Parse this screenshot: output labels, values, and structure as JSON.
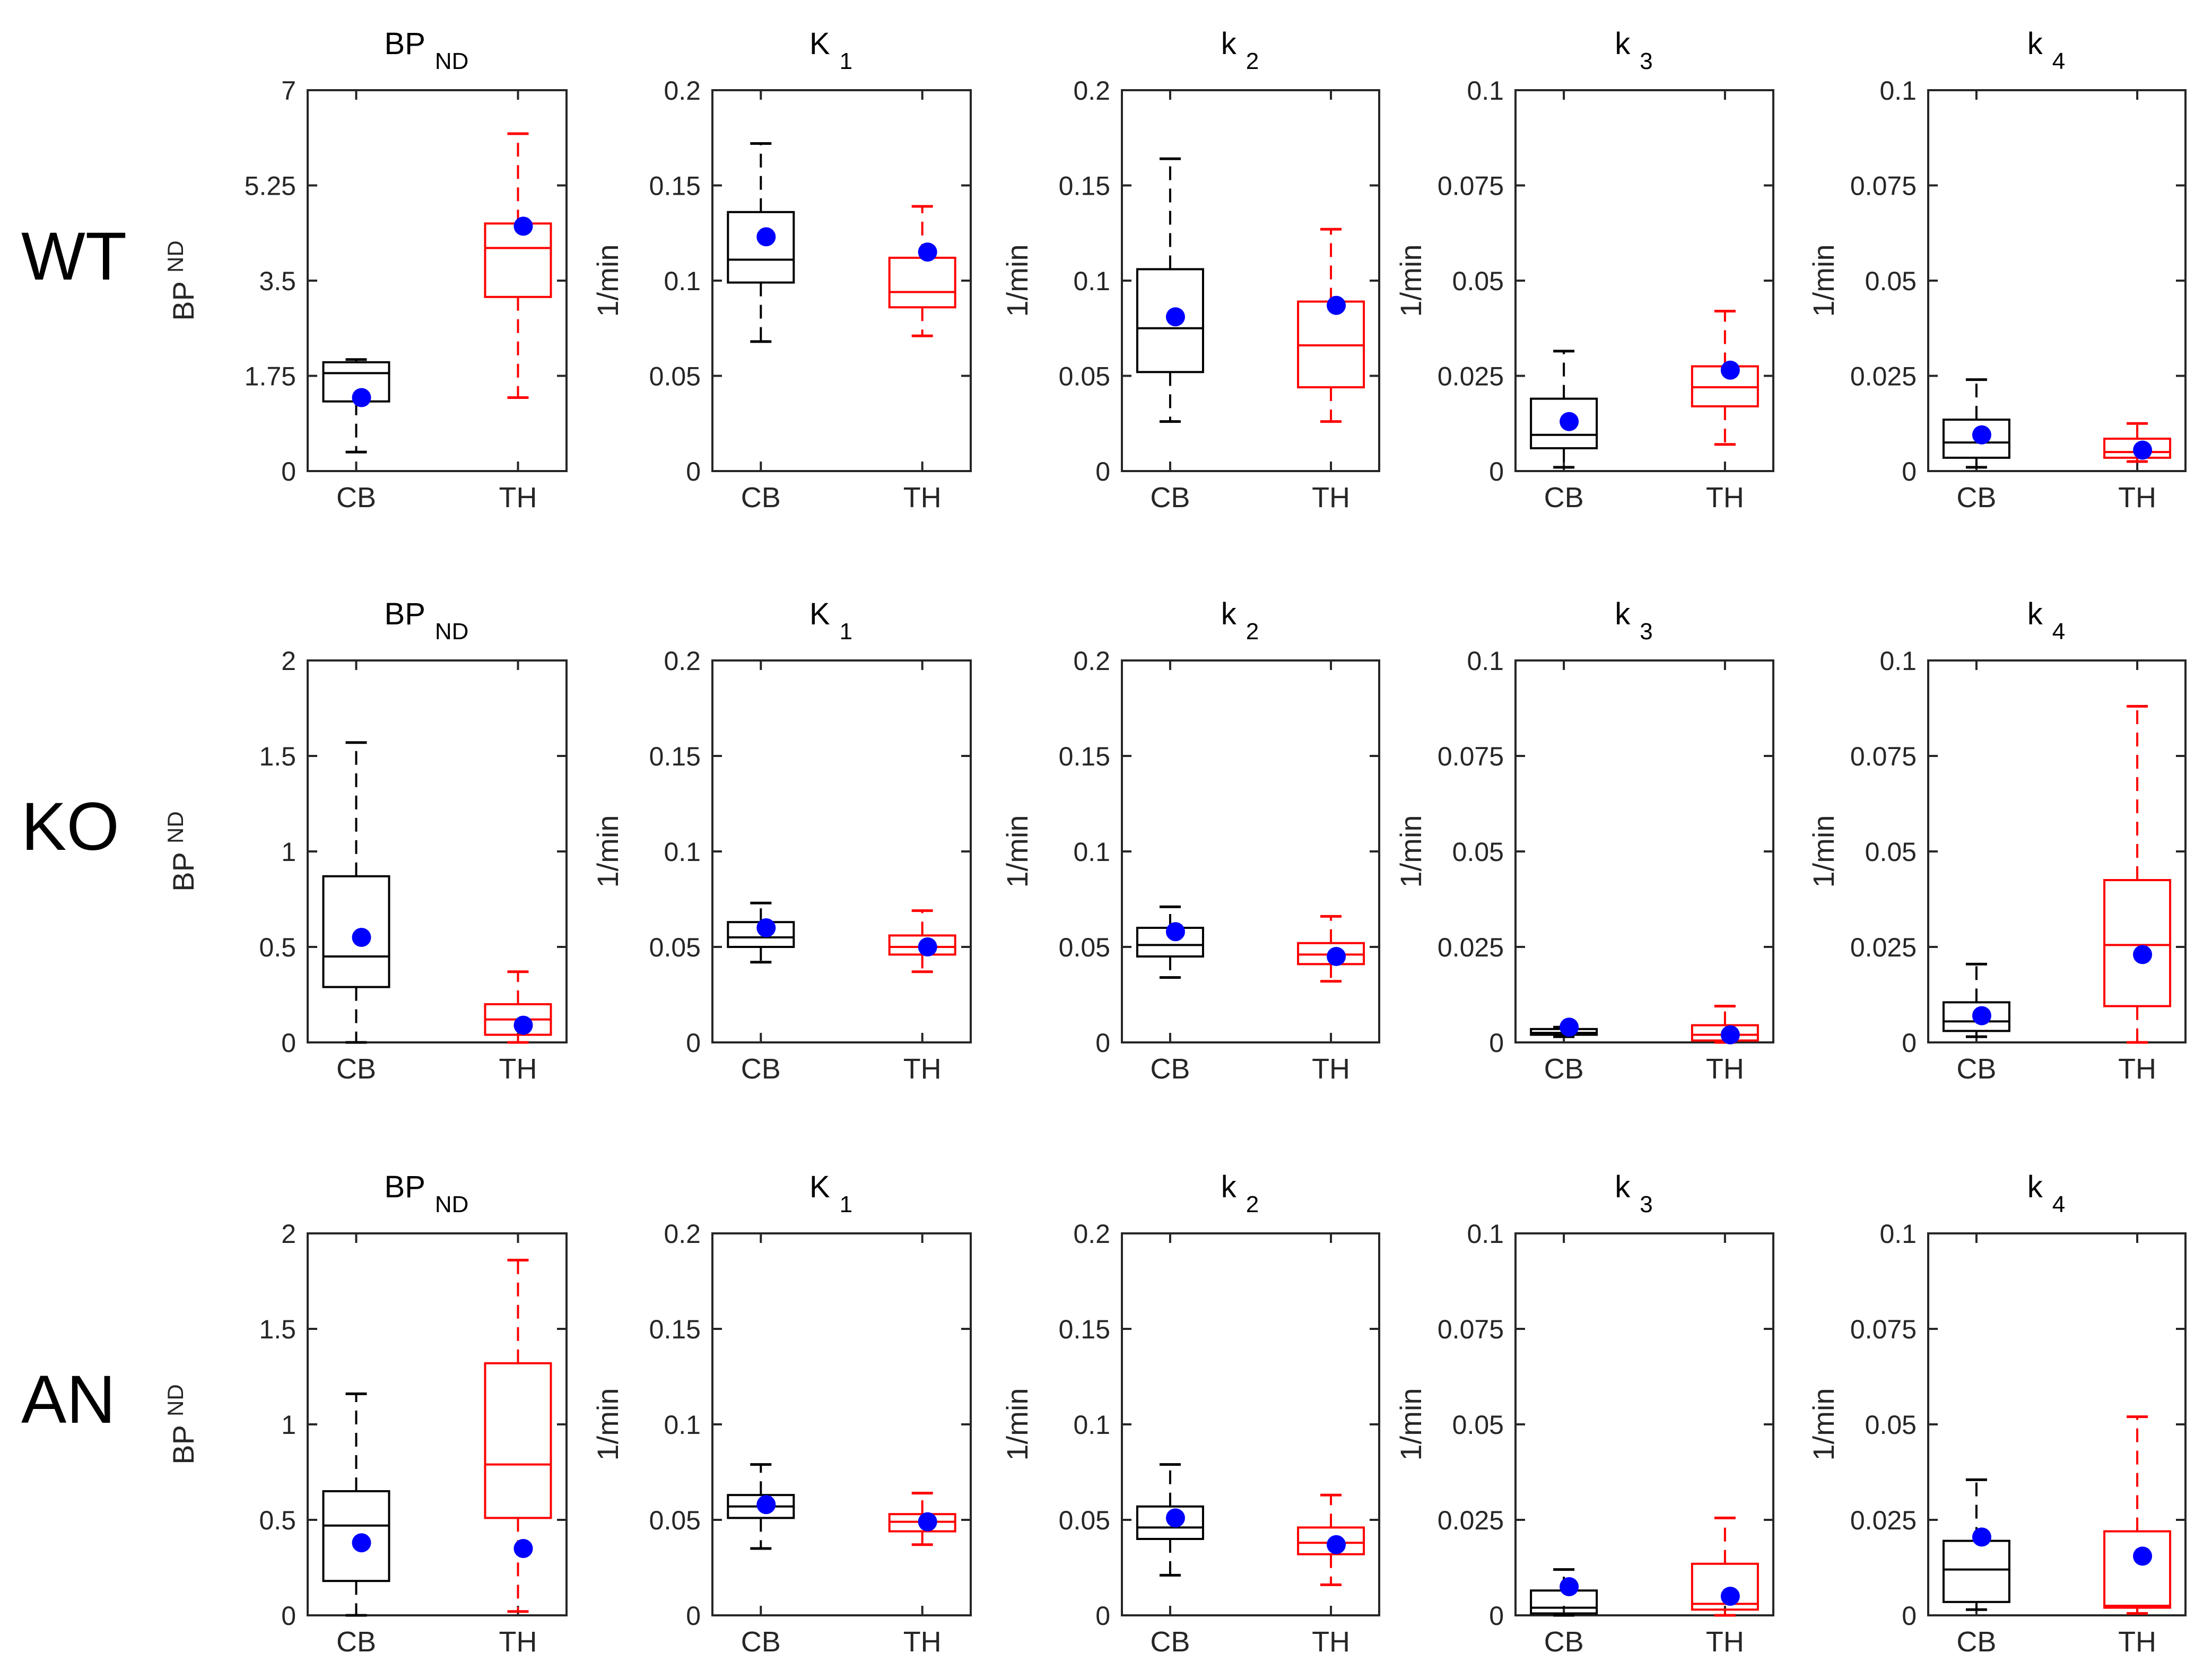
{
  "chart_data": {
    "type": "box",
    "layout": "grid",
    "rows": [
      {
        "label": "WT"
      },
      {
        "label": "KO"
      },
      {
        "label": "AN"
      }
    ],
    "panels": [
      {
        "title": "BP",
        "title_sub": "ND",
        "ylabel": "BP",
        "ylabel_sub": "ND"
      },
      {
        "title": "K",
        "title_sub": "1",
        "ylabel": "1/min",
        "ylabel_sub": ""
      },
      {
        "title": "k",
        "title_sub": "2",
        "ylabel": "1/min",
        "ylabel_sub": ""
      },
      {
        "title": "k",
        "title_sub": "3",
        "ylabel": "1/min",
        "ylabel_sub": ""
      },
      {
        "title": "k",
        "title_sub": "4",
        "ylabel": "1/min",
        "ylabel_sub": ""
      }
    ],
    "categories": [
      "CB",
      "TH"
    ],
    "category_colors": [
      "#000000",
      "#ff0000"
    ],
    "mean_color": "#0000ff",
    "ylims": [
      [
        [
          0,
          7
        ],
        [
          0,
          0.2
        ],
        [
          0,
          0.2
        ],
        [
          0,
          0.1
        ],
        [
          0,
          0.1
        ]
      ],
      [
        [
          0,
          2
        ],
        [
          0,
          0.2
        ],
        [
          0,
          0.2
        ],
        [
          0,
          0.1
        ],
        [
          0,
          0.1
        ]
      ],
      [
        [
          0,
          2
        ],
        [
          0,
          0.2
        ],
        [
          0,
          0.2
        ],
        [
          0,
          0.1
        ],
        [
          0,
          0.1
        ]
      ]
    ],
    "yticks": [
      [
        [
          "0",
          "1.75",
          "3.5",
          "5.25",
          "7"
        ],
        [
          "0",
          "0.05",
          "0.1",
          "0.15",
          "0.2"
        ],
        [
          "0",
          "0.05",
          "0.1",
          "0.15",
          "0.2"
        ],
        [
          "0",
          "0.025",
          "0.05",
          "0.075",
          "0.1"
        ],
        [
          "0",
          "0.025",
          "0.05",
          "0.075",
          "0.1"
        ]
      ],
      [
        [
          "0",
          "0.5",
          "1",
          "1.5",
          "2"
        ],
        [
          "0",
          "0.05",
          "0.1",
          "0.15",
          "0.2"
        ],
        [
          "0",
          "0.05",
          "0.1",
          "0.15",
          "0.2"
        ],
        [
          "0",
          "0.025",
          "0.05",
          "0.075",
          "0.1"
        ],
        [
          "0",
          "0.025",
          "0.05",
          "0.075",
          "0.1"
        ]
      ],
      [
        [
          "0",
          "0.5",
          "1",
          "1.5",
          "2"
        ],
        [
          "0",
          "0.05",
          "0.1",
          "0.15",
          "0.2"
        ],
        [
          "0",
          "0.05",
          "0.1",
          "0.15",
          "0.2"
        ],
        [
          "0",
          "0.025",
          "0.05",
          "0.075",
          "0.1"
        ],
        [
          "0",
          "0.025",
          "0.05",
          "0.075",
          "0.1"
        ]
      ]
    ],
    "boxes": [
      [
        [
          {
            "whisker_low": 0.35,
            "q1": 1.28,
            "median": 1.8,
            "q3": 2.0,
            "whisker_high": 2.05,
            "mean": 1.35
          },
          {
            "whisker_low": 1.35,
            "q1": 3.2,
            "median": 4.1,
            "q3": 4.55,
            "whisker_high": 6.2,
            "mean": 4.5
          }
        ],
        [
          {
            "whisker_low": 0.068,
            "q1": 0.099,
            "median": 0.111,
            "q3": 0.136,
            "whisker_high": 0.172,
            "mean": 0.123
          },
          {
            "whisker_low": 0.071,
            "q1": 0.086,
            "median": 0.094,
            "q3": 0.112,
            "whisker_high": 0.139,
            "mean": 0.115
          }
        ],
        [
          {
            "whisker_low": 0.026,
            "q1": 0.052,
            "median": 0.075,
            "q3": 0.106,
            "whisker_high": 0.164,
            "mean": 0.081
          },
          {
            "whisker_low": 0.026,
            "q1": 0.044,
            "median": 0.066,
            "q3": 0.089,
            "whisker_high": 0.127,
            "mean": 0.087
          }
        ],
        [
          {
            "whisker_low": 0.001,
            "q1": 0.006,
            "median": 0.0095,
            "q3": 0.019,
            "whisker_high": 0.0315,
            "mean": 0.013
          },
          {
            "whisker_low": 0.007,
            "q1": 0.017,
            "median": 0.022,
            "q3": 0.0275,
            "whisker_high": 0.042,
            "mean": 0.0265
          }
        ],
        [
          {
            "whisker_low": 0.001,
            "q1": 0.0035,
            "median": 0.0075,
            "q3": 0.0135,
            "whisker_high": 0.024,
            "mean": 0.0095
          },
          {
            "whisker_low": 0.0025,
            "q1": 0.0035,
            "median": 0.005,
            "q3": 0.0085,
            "whisker_high": 0.0125,
            "mean": 0.0055
          }
        ]
      ],
      [
        [
          {
            "whisker_low": 0.0,
            "q1": 0.29,
            "median": 0.45,
            "q3": 0.87,
            "whisker_high": 1.57,
            "mean": 0.55
          },
          {
            "whisker_low": 0.0,
            "q1": 0.04,
            "median": 0.12,
            "q3": 0.2,
            "whisker_high": 0.37,
            "mean": 0.09
          }
        ],
        [
          {
            "whisker_low": 0.042,
            "q1": 0.05,
            "median": 0.055,
            "q3": 0.063,
            "whisker_high": 0.073,
            "mean": 0.06
          },
          {
            "whisker_low": 0.037,
            "q1": 0.046,
            "median": 0.05,
            "q3": 0.056,
            "whisker_high": 0.069,
            "mean": 0.05
          }
        ],
        [
          {
            "whisker_low": 0.034,
            "q1": 0.045,
            "median": 0.051,
            "q3": 0.06,
            "whisker_high": 0.071,
            "mean": 0.058
          },
          {
            "whisker_low": 0.032,
            "q1": 0.041,
            "median": 0.046,
            "q3": 0.052,
            "whisker_high": 0.066,
            "mean": 0.045
          }
        ],
        [
          {
            "whisker_low": 0.0015,
            "q1": 0.002,
            "median": 0.0025,
            "q3": 0.0035,
            "whisker_high": 0.004,
            "mean": 0.004
          },
          {
            "whisker_low": 0.0,
            "q1": 0.0005,
            "median": 0.002,
            "q3": 0.0045,
            "whisker_high": 0.0095,
            "mean": 0.002
          }
        ],
        [
          {
            "whisker_low": 0.0015,
            "q1": 0.003,
            "median": 0.0055,
            "q3": 0.0105,
            "whisker_high": 0.0205,
            "mean": 0.007
          },
          {
            "whisker_low": 0.0,
            "q1": 0.0095,
            "median": 0.0255,
            "q3": 0.0425,
            "whisker_high": 0.088,
            "mean": 0.023
          }
        ]
      ],
      [
        [
          {
            "whisker_low": 0.0,
            "q1": 0.18,
            "median": 0.47,
            "q3": 0.65,
            "whisker_high": 1.16,
            "mean": 0.38
          },
          {
            "whisker_low": 0.02,
            "q1": 0.51,
            "median": 0.79,
            "q3": 1.32,
            "whisker_high": 1.86,
            "mean": 0.35
          }
        ],
        [
          {
            "whisker_low": 0.035,
            "q1": 0.051,
            "median": 0.057,
            "q3": 0.063,
            "whisker_high": 0.079,
            "mean": 0.058
          },
          {
            "whisker_low": 0.037,
            "q1": 0.044,
            "median": 0.049,
            "q3": 0.053,
            "whisker_high": 0.064,
            "mean": 0.049
          }
        ],
        [
          {
            "whisker_low": 0.021,
            "q1": 0.04,
            "median": 0.046,
            "q3": 0.057,
            "whisker_high": 0.079,
            "mean": 0.051
          },
          {
            "whisker_low": 0.016,
            "q1": 0.032,
            "median": 0.038,
            "q3": 0.046,
            "whisker_high": 0.063,
            "mean": 0.037
          }
        ],
        [
          {
            "whisker_low": 0.0,
            "q1": 0.0005,
            "median": 0.002,
            "q3": 0.0065,
            "whisker_high": 0.012,
            "mean": 0.0075
          },
          {
            "whisker_low": 0.0,
            "q1": 0.0015,
            "median": 0.003,
            "q3": 0.0135,
            "whisker_high": 0.0255,
            "mean": 0.005
          }
        ],
        [
          {
            "whisker_low": 0.0015,
            "q1": 0.0035,
            "median": 0.012,
            "q3": 0.0195,
            "whisker_high": 0.0355,
            "mean": 0.0205
          },
          {
            "whisker_low": 0.0005,
            "q1": 0.002,
            "median": 0.0025,
            "q3": 0.022,
            "whisker_high": 0.052,
            "mean": 0.0155
          }
        ]
      ]
    ]
  }
}
